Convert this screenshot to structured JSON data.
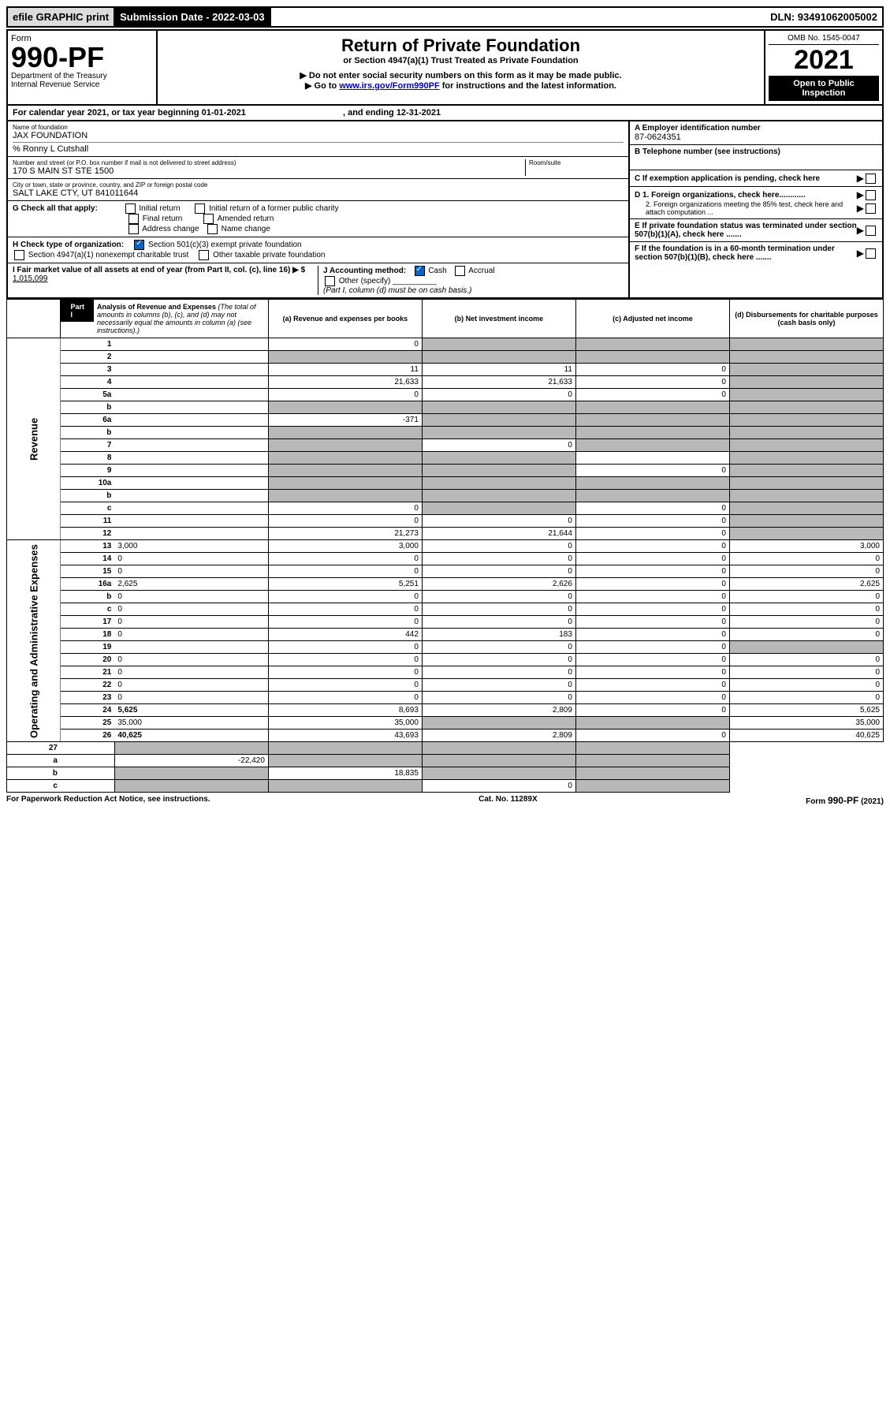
{
  "top_bar": {
    "efile": "efile GRAPHIC print",
    "submission_label": "Submission Date - 2022-03-03",
    "dln": "DLN: 93491062005002"
  },
  "header": {
    "form_word": "Form",
    "form_number": "990-PF",
    "dept": "Department of the Treasury",
    "irs": "Internal Revenue Service",
    "title": "Return of Private Foundation",
    "subtitle": "or Section 4947(a)(1) Trust Treated as Private Foundation",
    "note1": "▶ Do not enter social security numbers on this form as it may be made public.",
    "note2_pre": "▶ Go to ",
    "note2_link": "www.irs.gov/Form990PF",
    "note2_post": " for instructions and the latest information.",
    "omb": "OMB No. 1545-0047",
    "year": "2021",
    "open": "Open to Public Inspection"
  },
  "cal_year": "For calendar year 2021, or tax year beginning 01-01-2021",
  "ending": ", and ending 12-31-2021",
  "foundation": {
    "name_label": "Name of foundation",
    "name": "JAX FOUNDATION",
    "care_of": "% Ronny L Cutshall",
    "addr_label": "Number and street (or P.O. box number if mail is not delivered to street address)",
    "addr": "170 S MAIN ST STE 1500",
    "room_label": "Room/suite",
    "city_label": "City or town, state or province, country, and ZIP or foreign postal code",
    "city": "SALT LAKE CTY, UT  841011644"
  },
  "right_boxes": {
    "a_label": "A Employer identification number",
    "a_value": "87-0624351",
    "b_label": "B Telephone number (see instructions)",
    "c_label": "C If exemption application is pending, check here",
    "d1_label": "D 1. Foreign organizations, check here............",
    "d2_label": "2. Foreign organizations meeting the 85% test, check here and attach computation ...",
    "e_label": "E  If private foundation status was terminated under section 507(b)(1)(A), check here .......",
    "f_label": "F  If the foundation is in a 60-month termination under section 507(b)(1)(B), check here .......",
    "checkmark_pointer": "▶"
  },
  "g": {
    "label": "G Check all that apply:",
    "initial": "Initial return",
    "final": "Final return",
    "address": "Address change",
    "initial_former": "Initial return of a former public charity",
    "amended": "Amended return",
    "name_change": "Name change"
  },
  "h": {
    "label": "H Check type of organization:",
    "opt1": "Section 501(c)(3) exempt private foundation",
    "opt2": "Section 4947(a)(1) nonexempt charitable trust",
    "opt3": "Other taxable private foundation"
  },
  "i": {
    "label": "I Fair market value of all assets at end of year (from Part II, col. (c), line 16) ▶ $",
    "value": "1,015,099"
  },
  "j": {
    "label": "J Accounting method:",
    "cash": "Cash",
    "accrual": "Accrual",
    "other": "Other (specify)",
    "note": "(Part I, column (d) must be on cash basis.)"
  },
  "part1": {
    "tab": "Part I",
    "title": "Analysis of Revenue and Expenses",
    "title_note": " (The total of amounts in columns (b), (c), and (d) may not necessarily equal the amounts in column (a) (see instructions).)",
    "col_a": "(a) Revenue and expenses per books",
    "col_b": "(b) Net investment income",
    "col_c": "(c) Adjusted net income",
    "col_d": "(d) Disbursements for charitable purposes (cash basis only)"
  },
  "vert": {
    "revenue": "Revenue",
    "expenses": "Operating and Administrative Expenses"
  },
  "rows": [
    {
      "n": "1",
      "d": "",
      "a": "0",
      "b": "",
      "c": "",
      "sb": true,
      "sc": true,
      "sd": true
    },
    {
      "n": "2",
      "d": "",
      "a": "",
      "b": "",
      "c": "",
      "sa": true,
      "sb": true,
      "sc": true,
      "sd": true,
      "bold_not": true
    },
    {
      "n": "3",
      "d": "",
      "a": "11",
      "b": "11",
      "c": "0",
      "sd": true
    },
    {
      "n": "4",
      "d": "",
      "a": "21,633",
      "b": "21,633",
      "c": "0",
      "sd": true
    },
    {
      "n": "5a",
      "d": "",
      "a": "0",
      "b": "0",
      "c": "0",
      "sd": true
    },
    {
      "n": "b",
      "d": "",
      "a": "",
      "b": "",
      "c": "",
      "sa": true,
      "sb": true,
      "sc": true,
      "sd": true
    },
    {
      "n": "6a",
      "d": "",
      "a": "-371",
      "b": "",
      "c": "",
      "sb": true,
      "sc": true,
      "sd": true
    },
    {
      "n": "b",
      "d": "",
      "a": "",
      "b": "",
      "c": "",
      "sa": true,
      "sb": true,
      "sc": true,
      "sd": true
    },
    {
      "n": "7",
      "d": "",
      "a": "",
      "b": "0",
      "c": "",
      "sa": true,
      "sc": true,
      "sd": true
    },
    {
      "n": "8",
      "d": "",
      "a": "",
      "b": "",
      "c": "",
      "sa": true,
      "sb": true,
      "sd": true
    },
    {
      "n": "9",
      "d": "",
      "a": "",
      "b": "",
      "c": "0",
      "sa": true,
      "sb": true,
      "sd": true
    },
    {
      "n": "10a",
      "d": "",
      "a": "",
      "b": "",
      "c": "",
      "sa": true,
      "sb": true,
      "sc": true,
      "sd": true
    },
    {
      "n": "b",
      "d": "",
      "a": "",
      "b": "",
      "c": "",
      "sa": true,
      "sb": true,
      "sc": true,
      "sd": true
    },
    {
      "n": "c",
      "d": "",
      "a": "0",
      "b": "",
      "c": "0",
      "sb": true,
      "sd": true
    },
    {
      "n": "11",
      "d": "",
      "a": "0",
      "b": "0",
      "c": "0",
      "sd": true
    },
    {
      "n": "12",
      "d": "",
      "a": "21,273",
      "b": "21,644",
      "c": "0",
      "sd": true,
      "bold": true
    }
  ],
  "exp_rows": [
    {
      "n": "13",
      "d": "3,000",
      "a": "3,000",
      "b": "0",
      "c": "0"
    },
    {
      "n": "14",
      "d": "0",
      "a": "0",
      "b": "0",
      "c": "0"
    },
    {
      "n": "15",
      "d": "0",
      "a": "0",
      "b": "0",
      "c": "0"
    },
    {
      "n": "16a",
      "d": "2,625",
      "a": "5,251",
      "b": "2,626",
      "c": "0"
    },
    {
      "n": "b",
      "d": "0",
      "a": "0",
      "b": "0",
      "c": "0"
    },
    {
      "n": "c",
      "d": "0",
      "a": "0",
      "b": "0",
      "c": "0"
    },
    {
      "n": "17",
      "d": "0",
      "a": "0",
      "b": "0",
      "c": "0"
    },
    {
      "n": "18",
      "d": "0",
      "a": "442",
      "b": "183",
      "c": "0"
    },
    {
      "n": "19",
      "d": "",
      "a": "0",
      "b": "0",
      "c": "0",
      "sd": true
    },
    {
      "n": "20",
      "d": "0",
      "a": "0",
      "b": "0",
      "c": "0"
    },
    {
      "n": "21",
      "d": "0",
      "a": "0",
      "b": "0",
      "c": "0"
    },
    {
      "n": "22",
      "d": "0",
      "a": "0",
      "b": "0",
      "c": "0"
    },
    {
      "n": "23",
      "d": "0",
      "a": "0",
      "b": "0",
      "c": "0"
    },
    {
      "n": "24",
      "d": "5,625",
      "a": "8,693",
      "b": "2,809",
      "c": "0",
      "bold": true
    },
    {
      "n": "25",
      "d": "35,000",
      "a": "35,000",
      "b": "",
      "c": "",
      "sb": true,
      "sc": true
    },
    {
      "n": "26",
      "d": "40,625",
      "a": "43,693",
      "b": "2,809",
      "c": "0",
      "bold": true
    }
  ],
  "bottom_rows": [
    {
      "n": "27",
      "d": "",
      "a": "",
      "b": "",
      "c": "",
      "sa": true,
      "sb": true,
      "sc": true,
      "sd": true
    },
    {
      "n": "a",
      "d": "",
      "a": "-22,420",
      "b": "",
      "c": "",
      "sb": true,
      "sc": true,
      "sd": true,
      "bold": true
    },
    {
      "n": "b",
      "d": "",
      "a": "",
      "b": "18,835",
      "c": "",
      "sa": true,
      "sc": true,
      "sd": true,
      "bold": true
    },
    {
      "n": "c",
      "d": "",
      "a": "",
      "b": "",
      "c": "0",
      "sa": true,
      "sb": true,
      "sd": true,
      "bold": true
    }
  ],
  "footer": {
    "left": "For Paperwork Reduction Act Notice, see instructions.",
    "center": "Cat. No. 11289X",
    "right": "Form 990-PF (2021)"
  }
}
